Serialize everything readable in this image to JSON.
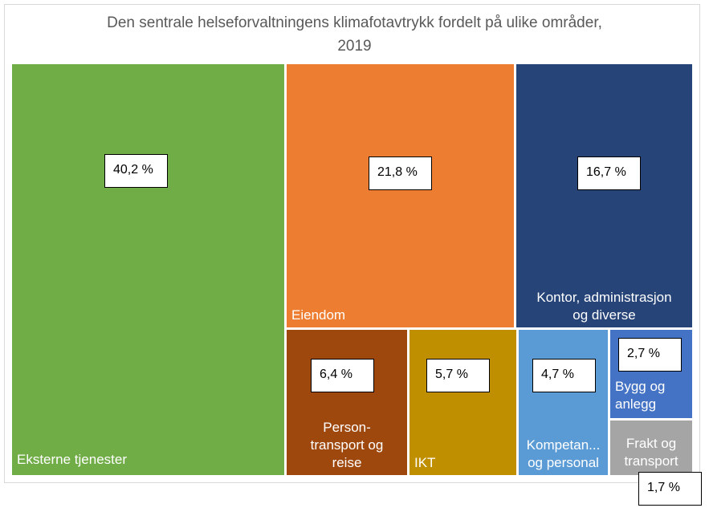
{
  "chart_data": {
    "type": "treemap",
    "title": "Den sentrale helseforvaltningens klimafotavtrykk fordelt på ulike områder, 2019",
    "title_lines": [
      "Den sentrale helseforvaltningens klimafotavtrykk fordelt på ulike områder,",
      "2019"
    ],
    "unit": "%",
    "items": [
      {
        "name": "Eksterne tjenester",
        "value": 40.2,
        "label": "40,2 %",
        "color": "#70AD47"
      },
      {
        "name": "Eiendom",
        "value": 21.8,
        "label": "21,8 %",
        "color": "#ED7D31"
      },
      {
        "name": "Kontor, administrasjon og diverse",
        "value": 16.7,
        "label": "16,7 %",
        "color": "#264478"
      },
      {
        "name": "Person-transport og reise",
        "value": 6.4,
        "label": "6,4 %",
        "color": "#9E480E"
      },
      {
        "name": "IKT",
        "value": 5.7,
        "label": "5,7 %",
        "color": "#BF8F00"
      },
      {
        "name": "Kompetan... og personal",
        "value": 4.7,
        "label": "4,7 %",
        "color": "#5B9BD5"
      },
      {
        "name": "Bygg og anlegg",
        "value": 2.7,
        "label": "2,7 %",
        "color": "#4472C4"
      },
      {
        "name": "Frakt og transport",
        "value": 1.7,
        "label": "1,7 %",
        "color": "#A5A5A5"
      }
    ]
  }
}
